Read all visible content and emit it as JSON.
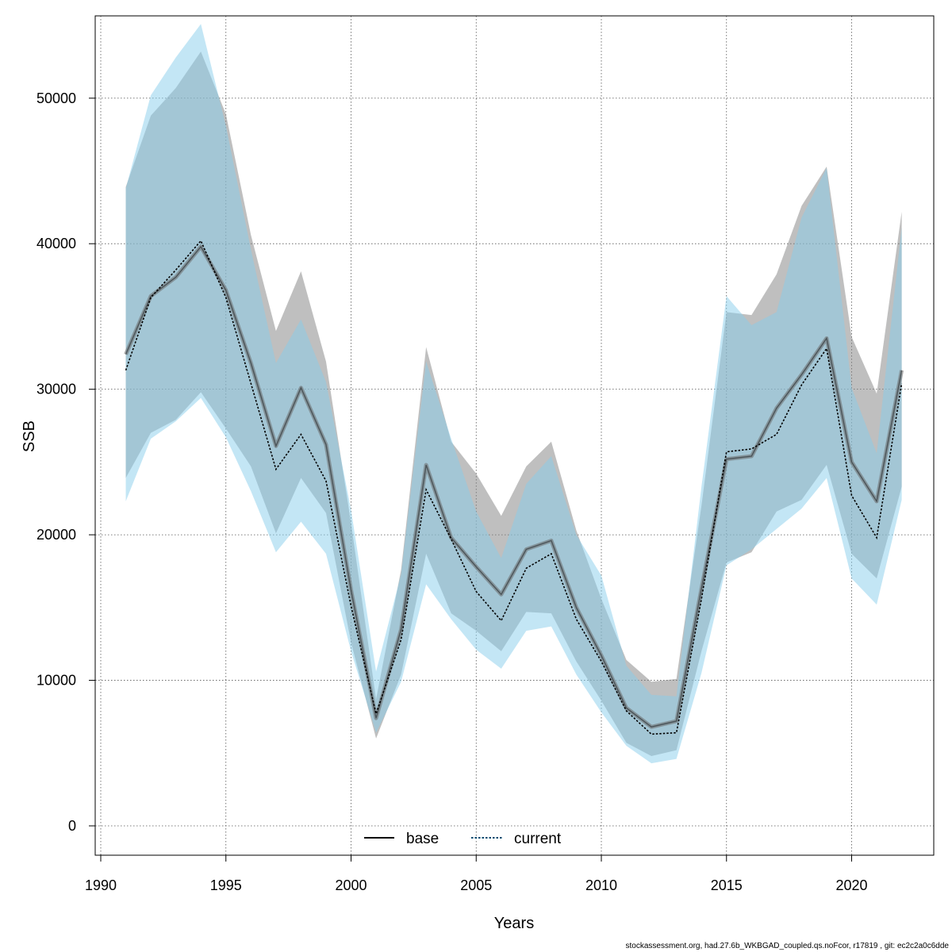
{
  "chart_data": {
    "type": "line",
    "xlabel": "Years",
    "ylabel": "SSB",
    "xlim": [
      1990,
      2023
    ],
    "ylim": [
      0,
      55000
    ],
    "x_ticks": [
      1990,
      1995,
      2000,
      2005,
      2010,
      2015,
      2020
    ],
    "y_ticks": [
      0,
      10000,
      20000,
      30000,
      40000,
      50000
    ],
    "grid": true,
    "legend_position": "bottom-center",
    "x": [
      1991,
      1992,
      1993,
      1994,
      1995,
      1996,
      1997,
      1998,
      1999,
      2000,
      2001,
      2002,
      2003,
      2004,
      2005,
      2006,
      2007,
      2008,
      2009,
      2010,
      2011,
      2012,
      2013,
      2014,
      2015,
      2016,
      2017,
      2018,
      2019,
      2020,
      2021,
      2022
    ],
    "series": [
      {
        "name": "base",
        "color": "#000000",
        "band_color": "#7f7f7f",
        "values": [
          32400,
          36400,
          37700,
          39800,
          36800,
          31800,
          26100,
          30100,
          26200,
          16200,
          7400,
          13500,
          24800,
          19800,
          17800,
          15900,
          19000,
          19600,
          15000,
          11700,
          8100,
          6800,
          7200,
          16300,
          25200,
          25400,
          28700,
          31000,
          33500,
          25000,
          22300,
          31300
        ],
        "lower": [
          23900,
          27000,
          27900,
          29800,
          27300,
          24700,
          20100,
          23900,
          21500,
          12600,
          6000,
          10400,
          18700,
          14600,
          13400,
          12000,
          14700,
          14600,
          11300,
          8600,
          5700,
          4800,
          5200,
          12000,
          18100,
          18800,
          21600,
          22400,
          24800,
          18700,
          17000,
          23300
        ],
        "upper": [
          43900,
          48800,
          50700,
          53200,
          48900,
          40600,
          34000,
          38100,
          31900,
          20800,
          8700,
          17600,
          32900,
          26400,
          24200,
          21300,
          24700,
          26400,
          20300,
          15600,
          11400,
          9900,
          10100,
          22000,
          35300,
          35100,
          37900,
          42600,
          45300,
          33600,
          29700,
          42200
        ]
      },
      {
        "name": "current",
        "color": "#00496f",
        "band_color": "#87ceeb",
        "values": [
          31300,
          36300,
          38200,
          40200,
          36300,
          30400,
          24500,
          26900,
          23700,
          15100,
          7700,
          12800,
          23100,
          19700,
          16100,
          14100,
          17700,
          18700,
          14200,
          11300,
          7900,
          6300,
          6400,
          15600,
          25700,
          25900,
          26900,
          30300,
          32800,
          22700,
          19800,
          30400
        ],
        "lower": [
          22300,
          26600,
          27800,
          29400,
          26700,
          23000,
          18800,
          20900,
          18700,
          12000,
          6400,
          9900,
          16600,
          14200,
          12100,
          10800,
          13400,
          13700,
          10400,
          7800,
          5500,
          4300,
          4600,
          10500,
          17900,
          19000,
          20400,
          21800,
          23900,
          17000,
          15200,
          22400
        ],
        "upper": [
          43800,
          50200,
          52800,
          55100,
          48100,
          39600,
          31800,
          34800,
          30500,
          21700,
          10600,
          17300,
          31900,
          26600,
          21600,
          18400,
          23500,
          25400,
          20000,
          17200,
          11000,
          9000,
          8900,
          23300,
          36400,
          34400,
          35300,
          41800,
          45200,
          30100,
          25600,
          41100
        ]
      }
    ],
    "footer": "stockassessment.org, had.27.6b_WKBGAD_coupled.qs.noFcor, r17819 , git: ec2c2a0c6dde"
  }
}
